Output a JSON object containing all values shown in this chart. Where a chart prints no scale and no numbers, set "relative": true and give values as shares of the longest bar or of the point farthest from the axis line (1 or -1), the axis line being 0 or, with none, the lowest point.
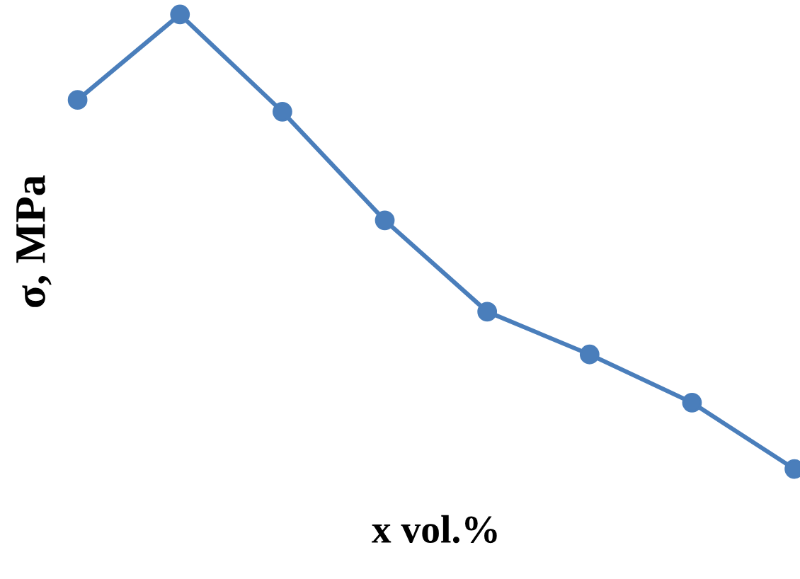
{
  "chart_data": {
    "type": "line",
    "relative": true,
    "xlabel": "x vol.%",
    "ylabel": "σ, MPa",
    "categories": [
      null,
      null,
      null,
      null,
      null,
      null,
      null,
      null
    ],
    "series": [
      {
        "color": "#4a7ebb",
        "values": [
          0.812,
          1,
          0.786,
          0.547,
          0.346,
          0.252,
          0.146,
          0
        ]
      }
    ],
    "marker": "circle",
    "line_style": "solid"
  }
}
